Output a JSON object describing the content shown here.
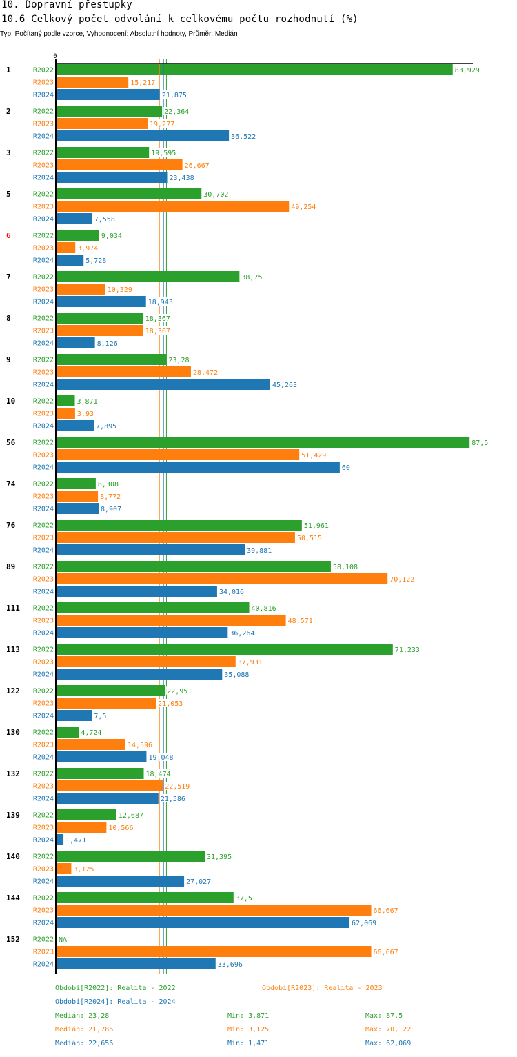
{
  "header": {
    "title": "10. Dopravní přestupky",
    "subtitle": "10.6 Celkový počet odvolání k celkovému počtu rozhodnutí (%)",
    "description": "Typ: Počítaný podle vzorce, Vyhodnocení: Absolutní hodnoty, Průměr: Medián"
  },
  "colors": {
    "R2022": "#2ca02c",
    "R2023": "#ff7f0e",
    "R2024": "#1f77b4",
    "highlight_category": "#ff0000",
    "axis": "#000000"
  },
  "chart_data": {
    "type": "bar",
    "orientation": "horizontal",
    "title": "10.6 Celkový počet odvolání k celkovému počtu rozhodnutí (%)",
    "xlabel": "",
    "ylabel": "",
    "x_tick_labels": [
      "0"
    ],
    "xlim": [
      0,
      88.2
    ],
    "grid": false,
    "highlighted_category": "6",
    "categories": [
      "1",
      "2",
      "3",
      "5",
      "6",
      "7",
      "8",
      "9",
      "10",
      "56",
      "74",
      "76",
      "89",
      "111",
      "113",
      "122",
      "130",
      "132",
      "139",
      "140",
      "144",
      "152"
    ],
    "series": [
      {
        "name": "R2022",
        "values": [
          83.929,
          22.364,
          19.595,
          30.702,
          9.034,
          38.75,
          18.367,
          23.28,
          3.871,
          87.5,
          8.308,
          51.961,
          58.108,
          40.816,
          71.233,
          22.951,
          4.724,
          18.474,
          12.687,
          31.395,
          37.5,
          null
        ],
        "labels": [
          "83,929",
          "22,364",
          "19,595",
          "30,702",
          "9,034",
          "38,75",
          "18,367",
          "23,28",
          "3,871",
          "87,5",
          "8,308",
          "51,961",
          "58,108",
          "40,816",
          "71,233",
          "22,951",
          "4,724",
          "18,474",
          "12,687",
          "31,395",
          "37,5",
          "NA"
        ]
      },
      {
        "name": "R2023",
        "values": [
          15.217,
          19.277,
          26.667,
          49.254,
          3.974,
          10.329,
          18.367,
          28.472,
          3.93,
          51.429,
          8.772,
          50.515,
          70.122,
          48.571,
          37.931,
          21.053,
          14.596,
          22.519,
          10.566,
          3.125,
          66.667,
          66.667
        ],
        "labels": [
          "15,217",
          "19,277",
          "26,667",
          "49,254",
          "3,974",
          "10,329",
          "18,367",
          "28,472",
          "3,93",
          "51,429",
          "8,772",
          "50,515",
          "70,122",
          "48,571",
          "37,931",
          "21,053",
          "14,596",
          "22,519",
          "10,566",
          "3,125",
          "66,667",
          "66,667"
        ]
      },
      {
        "name": "R2024",
        "values": [
          21.875,
          36.522,
          23.438,
          7.558,
          5.728,
          18.943,
          8.126,
          45.263,
          7.895,
          60,
          8.907,
          39.881,
          34.016,
          36.264,
          35.088,
          7.5,
          19.048,
          21.586,
          1.471,
          27.027,
          62.069,
          33.696
        ],
        "labels": [
          "21,875",
          "36,522",
          "23,438",
          "7,558",
          "5,728",
          "18,943",
          "8,126",
          "45,263",
          "7,895",
          "60",
          "8,907",
          "39,881",
          "34,016",
          "36,264",
          "35,088",
          "7,5",
          "19,048",
          "21,586",
          "1,471",
          "27,027",
          "62,069",
          "33,696"
        ]
      }
    ],
    "reference_lines": [
      {
        "series": "R2023",
        "type": "median",
        "value": 21.786
      },
      {
        "series": "R2024",
        "type": "median",
        "value": 22.656
      },
      {
        "series": "R2022",
        "type": "median",
        "value": 23.28
      }
    ],
    "legend": {
      "placement": "bottom",
      "entries": [
        {
          "series": "R2022",
          "text": "Období[R2022]: Realita - 2022"
        },
        {
          "series": "R2023",
          "text": "Období[R2023]: Realita - 2023"
        },
        {
          "series": "R2024",
          "text": "Období[R2024]: Realita - 2024"
        }
      ]
    },
    "stats": [
      {
        "series": "R2022",
        "median": "Medián: 23,28",
        "min": "Min: 3,871",
        "max": "Max: 87,5"
      },
      {
        "series": "R2023",
        "median": "Medián: 21,786",
        "min": "Min: 3,125",
        "max": "Max: 70,122"
      },
      {
        "series": "R2024",
        "median": "Medián: 22,656",
        "min": "Min: 1,471",
        "max": "Max: 62,069"
      }
    ]
  }
}
